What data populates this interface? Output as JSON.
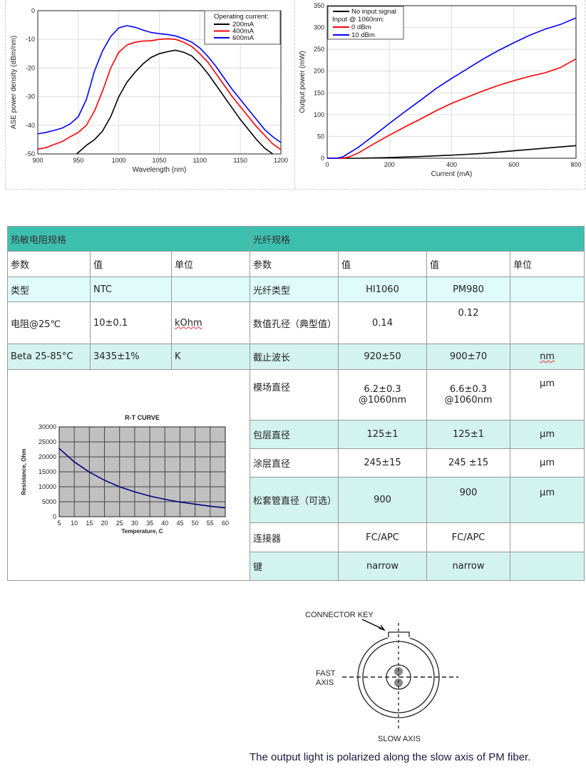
{
  "chart_data": [
    {
      "type": "line",
      "xlabel": "Wavelength (nm)",
      "ylabel": "ASE power density (dBm/nm)",
      "xlim": [
        900,
        1200
      ],
      "ylim": [
        -50,
        0
      ],
      "xticks": [
        900,
        950,
        1000,
        1050,
        1100,
        1150,
        1200
      ],
      "yticks": [
        0,
        -10,
        -20,
        -30,
        -40,
        -50
      ],
      "grid": true,
      "legend": "top-right",
      "legend_title": "Operating current:",
      "series": [
        {
          "name": "200mA",
          "color": "#000000",
          "x": [
            948,
            960,
            970,
            980,
            990,
            1000,
            1010,
            1020,
            1030,
            1040,
            1050,
            1060,
            1070,
            1080,
            1090,
            1100,
            1110,
            1120,
            1130,
            1140,
            1150,
            1160,
            1170,
            1180,
            1190
          ],
          "y": [
            -50,
            -47,
            -45,
            -42,
            -37,
            -30,
            -25,
            -21.5,
            -18.5,
            -16.3,
            -15,
            -14.3,
            -13.8,
            -14.5,
            -15.8,
            -18.5,
            -22,
            -26,
            -30,
            -34,
            -38,
            -41.5,
            -45,
            -48,
            -50
          ]
        },
        {
          "name": "400mA",
          "color": "#ff0000",
          "x": [
            900,
            910,
            920,
            930,
            940,
            950,
            960,
            970,
            980,
            990,
            1000,
            1010,
            1020,
            1030,
            1040,
            1050,
            1060,
            1070,
            1080,
            1090,
            1100,
            1110,
            1120,
            1130,
            1140,
            1150,
            1160,
            1170,
            1180,
            1190,
            1200
          ],
          "y": [
            -48.3,
            -47.8,
            -46.7,
            -45.7,
            -44,
            -42.5,
            -40,
            -35,
            -28,
            -20,
            -14.5,
            -12,
            -11,
            -10.6,
            -10.5,
            -10,
            -9.8,
            -10,
            -11,
            -12.5,
            -15,
            -18,
            -22,
            -26,
            -30,
            -33.5,
            -37,
            -40.5,
            -43.5,
            -46.5,
            -48.5
          ]
        },
        {
          "name": "600mA",
          "color": "#0000ff",
          "x": [
            900,
            910,
            920,
            930,
            940,
            950,
            960,
            970,
            980,
            990,
            1000,
            1010,
            1020,
            1030,
            1040,
            1050,
            1060,
            1070,
            1080,
            1090,
            1100,
            1110,
            1120,
            1130,
            1140,
            1150,
            1160,
            1170,
            1180,
            1190,
            1200
          ],
          "y": [
            -43,
            -42.5,
            -41.8,
            -41,
            -39.5,
            -37,
            -31,
            -21,
            -14,
            -9,
            -6,
            -5.2,
            -5.8,
            -6.8,
            -7.6,
            -8,
            -8.3,
            -8.8,
            -9.8,
            -11,
            -13,
            -16,
            -19.5,
            -23.5,
            -27.5,
            -31,
            -34.5,
            -38,
            -41.5,
            -44,
            -46
          ]
        }
      ]
    },
    {
      "type": "line",
      "xlabel": "Current (mA)",
      "ylabel": "Output power (mW)",
      "xlim": [
        0,
        800
      ],
      "ylim": [
        0,
        350
      ],
      "xticks": [
        0,
        200,
        400,
        600,
        800
      ],
      "yticks": [
        0,
        50,
        100,
        150,
        200,
        250,
        300,
        350
      ],
      "grid": true,
      "legend": "top-left",
      "legend_subtitle": "Input @ 1060nm:",
      "series": [
        {
          "name": "No input signal",
          "color": "#000000",
          "x": [
            0,
            100,
            200,
            300,
            400,
            500,
            600,
            700,
            800
          ],
          "y": [
            0,
            0,
            1.5,
            4,
            7,
            11,
            17,
            23,
            29
          ]
        },
        {
          "name": "0 dBm",
          "color": "#ff0000",
          "x": [
            0,
            50,
            70,
            100,
            150,
            200,
            250,
            300,
            350,
            400,
            450,
            500,
            550,
            600,
            650,
            700,
            750,
            800
          ],
          "y": [
            0,
            0,
            3,
            12,
            33,
            53,
            72,
            90,
            109,
            126,
            140,
            154,
            167,
            178,
            188,
            196,
            208,
            228
          ]
        },
        {
          "name": "10 dBm",
          "color": "#0000ff",
          "x": [
            0,
            30,
            50,
            100,
            150,
            200,
            250,
            300,
            350,
            400,
            450,
            500,
            550,
            600,
            650,
            700,
            750,
            800
          ],
          "y": [
            0,
            0,
            3,
            25,
            52,
            80,
            107,
            133,
            160,
            183,
            205,
            227,
            247,
            265,
            282,
            296,
            307,
            322
          ]
        }
      ]
    },
    {
      "type": "line",
      "title": "R-T CURVE",
      "xlabel": "Temperature,  C",
      "ylabel": "Resistance,  Ohm",
      "xlim": [
        5,
        60
      ],
      "ylim": [
        0,
        30000
      ],
      "xticks": [
        5,
        10,
        15,
        20,
        25,
        30,
        35,
        40,
        45,
        50,
        55,
        60
      ],
      "yticks": [
        0,
        5000,
        10000,
        15000,
        20000,
        25000,
        30000
      ],
      "grid": true,
      "background": "#c0c0c0",
      "series": [
        {
          "color": "#000080",
          "x": [
            5,
            10,
            15,
            20,
            25,
            30,
            35,
            40,
            45,
            50,
            55,
            60
          ],
          "y": [
            22800,
            18300,
            14900,
            12200,
            10000,
            8300,
            6900,
            5800,
            4900,
            4200,
            3500,
            3000
          ]
        }
      ]
    }
  ],
  "table": {
    "left_title": "热敏电阻规格",
    "right_title": "光纤规格",
    "headers": {
      "param": "参数",
      "value": "值",
      "unit": "单位"
    },
    "left_rows": [
      {
        "param": "类型",
        "value": "NTC",
        "unit": ""
      },
      {
        "param": "电阻@25℃",
        "value": "10±0.1",
        "unit": "kOhm"
      },
      {
        "param": "Beta  25-85°C",
        "value": "3435±1%",
        "unit": "K"
      }
    ],
    "right_rows": [
      {
        "param": "光纤类型",
        "v1": "HI1060",
        "v2": "PM980",
        "unit": ""
      },
      {
        "param": "数值孔径（典型值）",
        "v1": "0.14",
        "v2": "0.12",
        "unit": ""
      },
      {
        "param": "截止波长",
        "v1": "920±50",
        "v2": "900±70",
        "unit": "nm"
      },
      {
        "param": "模场直径",
        "v1": "6.2±0.3 @1060nm",
        "v2": "6.6±0.3 @1060nm",
        "unit": "µm"
      },
      {
        "param": "包层直径",
        "v1": "125±1",
        "v2": "125±1",
        "unit": "µm"
      },
      {
        "param": "涂层直径",
        "v1": "245±15",
        "v2": "245 ±15",
        "unit": "µm"
      },
      {
        "param": "松套管直径（可选）",
        "v1": "900",
        "v2": "900",
        "unit": "µm"
      },
      {
        "param": "连接器",
        "v1": "FC/APC",
        "v2": "FC/APC",
        "unit": ""
      },
      {
        "param": "键",
        "v1": "narrow",
        "v2": "narrow",
        "unit": ""
      }
    ]
  },
  "diagram": {
    "connector_key": "CONNECTOR KEY",
    "fast_axis_1": "FAST",
    "fast_axis_2": "AXIS",
    "slow_axis": "SLOW AXIS",
    "caption": "The output light is polarized along the slow axis of PM fiber."
  }
}
